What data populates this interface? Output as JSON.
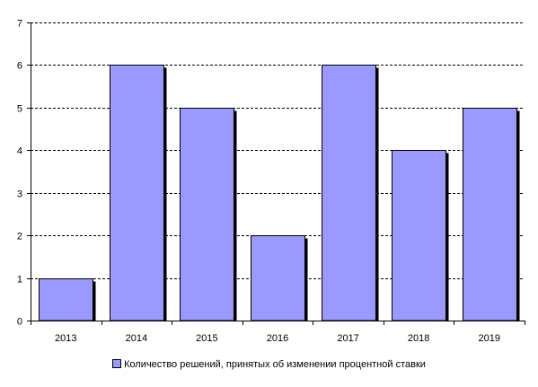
{
  "chart_data": {
    "type": "bar",
    "categories": [
      "2013",
      "2014",
      "2015",
      "2016",
      "2017",
      "2018",
      "2019"
    ],
    "series": [
      {
        "name": "Количество решений, принятых об изменении процентной ставки",
        "values": [
          1,
          6,
          5,
          2,
          6,
          4,
          5
        ]
      }
    ],
    "ylim": [
      0,
      7
    ],
    "yticks": [
      0,
      1,
      2,
      3,
      4,
      5,
      6,
      7
    ],
    "grid": "horizontal-dashed",
    "legend_position": "bottom",
    "colors": {
      "bar": "#9999FF",
      "bar_outline": "#000000",
      "bar_shadow": "#000000",
      "grid": "#000000",
      "axis": "#000000"
    }
  }
}
